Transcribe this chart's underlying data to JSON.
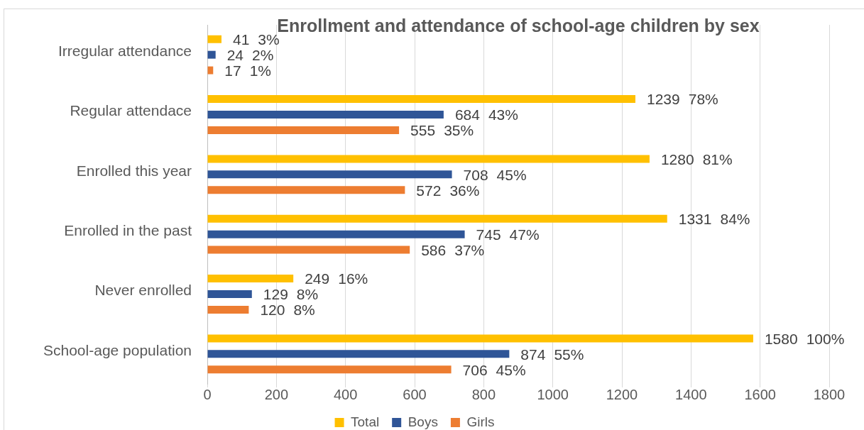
{
  "chart_data": {
    "type": "bar",
    "orientation": "horizontal",
    "title": "Enrollment and attendance of school-age children by sex",
    "categories": [
      "Irregular attendance",
      "Regular attendace",
      "Enrolled this year",
      "Enrolled in the past",
      "Never enrolled",
      "School-age population"
    ],
    "series": [
      {
        "name": "Total",
        "color": "#ffc000",
        "values": [
          41,
          1239,
          1280,
          1331,
          249,
          1580
        ]
      },
      {
        "name": "Boys",
        "color": "#2f5597",
        "values": [
          24,
          684,
          708,
          745,
          129,
          874
        ]
      },
      {
        "name": "Girls",
        "color": "#ed7d31",
        "values": [
          17,
          555,
          572,
          586,
          120,
          706
        ]
      }
    ],
    "xlim": [
      0,
      1800
    ],
    "xticks": [
      0,
      200,
      400,
      600,
      800,
      1000,
      1200,
      1400,
      1600,
      1800
    ],
    "grid": "x",
    "legend": "bottom",
    "data_labels": true,
    "annotations": [
      "3%",
      "2%",
      "1%",
      "78%",
      "43%",
      "35%",
      "81%",
      "45%",
      "36%",
      "84%",
      "47%",
      "37%",
      "16%",
      "8%",
      "8%",
      "100%",
      "55%",
      "45%"
    ]
  }
}
